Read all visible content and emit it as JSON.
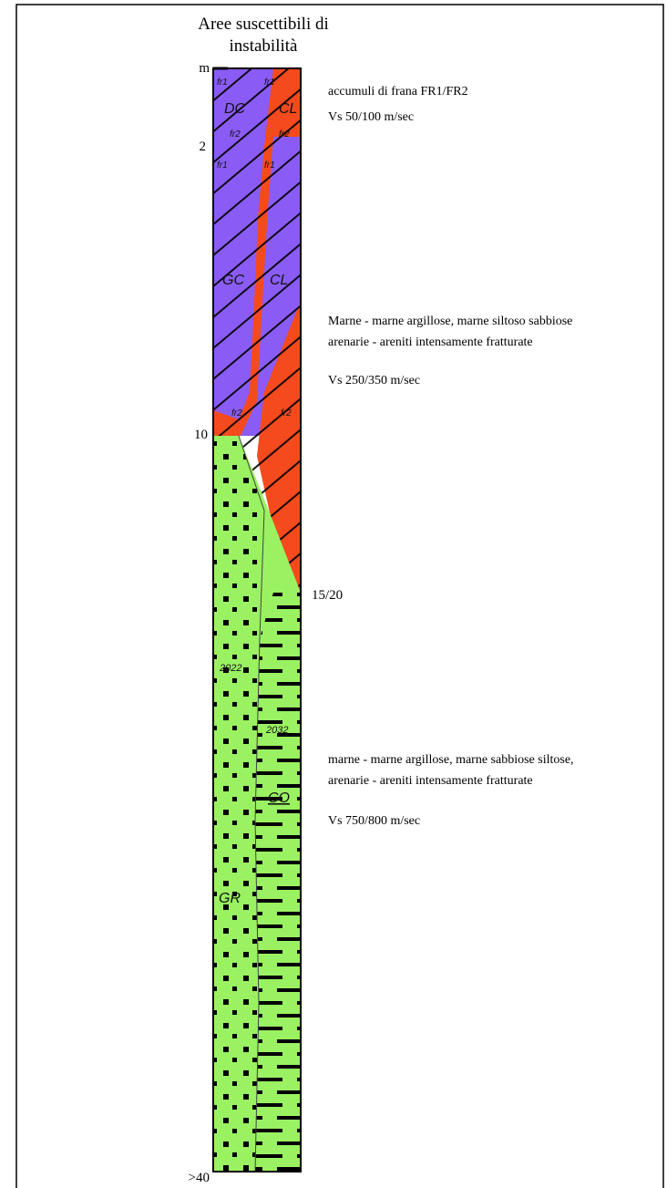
{
  "title": [
    "Aree suscettibili di",
    "instabilità"
  ],
  "depth_labels": [
    "m",
    "2",
    "10",
    "15/20",
    ">40"
  ],
  "descriptions": [
    "accumuli di frana FR1/FR2",
    "Vs  50/100 m/sec",
    "Marne - marne argillose, marne siltoso sabbiose",
    "arenarie - areniti intensamente fratturate",
    "Vs 250/350 m/sec",
    "marne - marne argillose, marne sabbiose siltose,",
    "arenarie - areniti intensamente fratturate",
    "Vs 750/800 m/sec"
  ],
  "column_labels": [
    "fr1",
    "fr1",
    "DC",
    "CL",
    "fr2",
    "fr2",
    "fr1",
    "fr1",
    "GC",
    "CL",
    "fr2",
    "fr2",
    "2022",
    "2032",
    "CO",
    "GR"
  ]
}
